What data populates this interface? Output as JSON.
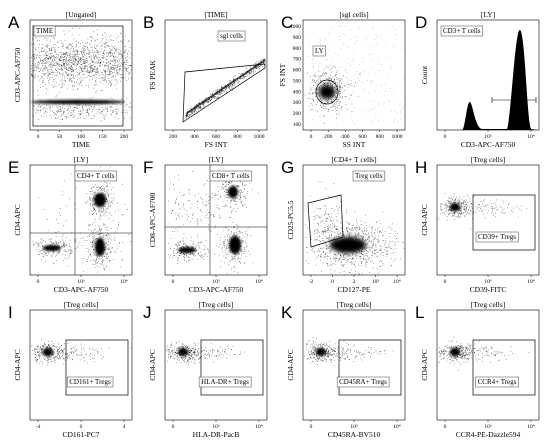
{
  "panels": [
    {
      "id": "A",
      "header": "[Ungated]",
      "xlabel": "TIME",
      "ylabel": "CD3-APC-AF750",
      "gate_label": "TIME",
      "xticks": [
        "0",
        "50",
        "100",
        "150",
        "200"
      ],
      "yticks": []
    },
    {
      "id": "B",
      "header": "[TIME]",
      "xlabel": "FS INT",
      "ylabel": "FS PEAK",
      "gate_label": "sgl cells",
      "xticks": [
        "200",
        "400",
        "600",
        "800",
        "1000"
      ],
      "yticks": []
    },
    {
      "id": "C",
      "header": "[sgl cells]",
      "xlabel": "SS INT",
      "ylabel": "FS INT",
      "gate_label": "LY",
      "xticks": [
        "0",
        "200",
        "400",
        "600",
        "800",
        "1000"
      ],
      "yticks": [
        "100",
        "200",
        "300",
        "400",
        "500",
        "600",
        "700",
        "800",
        "900",
        "1000"
      ]
    },
    {
      "id": "D",
      "header": "[LY]",
      "xlabel": "CD3-APC-AF750",
      "ylabel": "Count",
      "gate_label": "CD3+ T cells",
      "xticks": [
        "0",
        "10³",
        "10⁴"
      ],
      "yticks": []
    },
    {
      "id": "E",
      "header": "[LY]",
      "xlabel": "CD3-APC-AF750",
      "ylabel": "CD4-APC",
      "gate_label": "CD4+ T cells",
      "xticks": [
        "0",
        "10³",
        "10⁴"
      ],
      "yticks": []
    },
    {
      "id": "F",
      "header": "[LY]",
      "xlabel": "CD3-APC-AF750",
      "ylabel": "CD8-APC-AF700",
      "gate_label": "CD8+ T cells",
      "xticks": [
        "0",
        "10³",
        "10⁴"
      ],
      "yticks": []
    },
    {
      "id": "G",
      "header": "[CD4+ T cells]",
      "xlabel": "CD127-PE",
      "ylabel": "CD25-PC5.5",
      "gate_label": "Treg cells",
      "xticks": [
        "-2",
        "0",
        "2",
        "10³",
        "10⁴"
      ],
      "yticks": []
    },
    {
      "id": "H",
      "header": "[Treg cells]",
      "xlabel": "CD39-FITC",
      "ylabel": "CD4-APC",
      "gate_label": "CD39+ Tregs",
      "xticks": [
        "0",
        "10³",
        "10⁴"
      ],
      "yticks": []
    },
    {
      "id": "I",
      "header": "[Treg cells]",
      "xlabel": "CD161-PC7",
      "ylabel": "CD4-APC",
      "gate_label": "CD161+ Tregs",
      "xticks": [
        "-4",
        "0",
        "4"
      ],
      "yticks": []
    },
    {
      "id": "J",
      "header": "[Treg cells]",
      "xlabel": "HLA-DR-PacB",
      "ylabel": "CD4-APC",
      "gate_label": "HLA-DR+ Tregs",
      "xticks": [
        "0",
        "10³",
        "10⁴"
      ],
      "yticks": []
    },
    {
      "id": "K",
      "header": "[Treg cells]",
      "xlabel": "CD45RA-BV510",
      "ylabel": "CD4-APC",
      "gate_label": "CD45RA+ Tregs",
      "xticks": [
        "0",
        "10³",
        "10⁴"
      ],
      "yticks": []
    },
    {
      "id": "L",
      "header": "[Treg cells]",
      "xlabel": "CCR4-PE-Dazzle594",
      "ylabel": "CD4-APC",
      "gate_label": "CCR4+ Tregs",
      "xticks": [
        "0",
        "10³",
        "10⁴"
      ],
      "yticks": []
    }
  ]
}
